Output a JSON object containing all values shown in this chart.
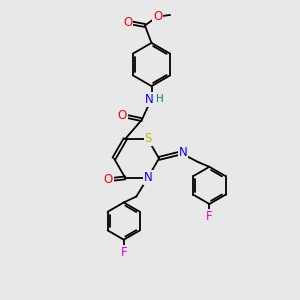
{
  "bg_color": "#e8e8e8",
  "bond_color": "#000000",
  "atom_colors": {
    "O": "#ff0000",
    "N": "#0000ff",
    "S": "#bbbb00",
    "F": "#ee00ee",
    "H": "#008080",
    "C": "#000000"
  },
  "font_size_atom": 8.5,
  "font_size_h": 7.5,
  "figsize": [
    3.0,
    3.0
  ],
  "dpi": 100,
  "lw": 1.3
}
